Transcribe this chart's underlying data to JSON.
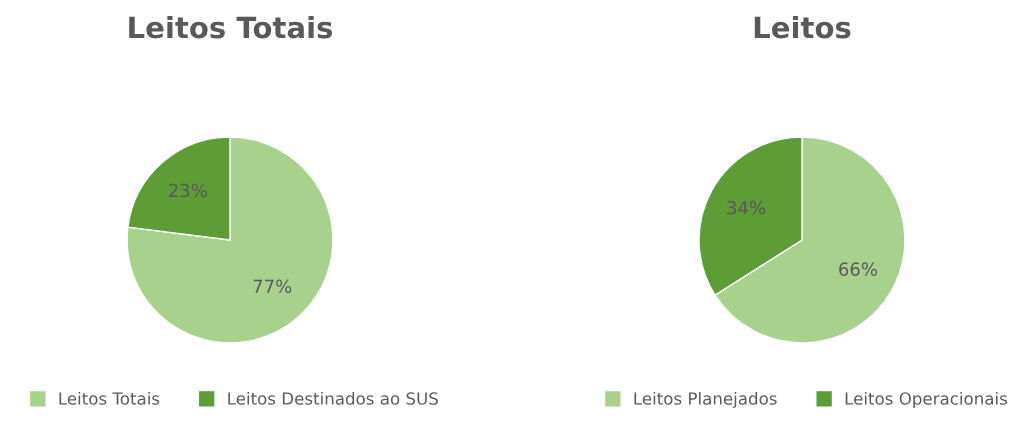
{
  "chart_data": [
    {
      "type": "pie",
      "title": "Leitos Totais",
      "categories": [
        "Leitos Totais",
        "Leitos Destinados ao SUS"
      ],
      "values": [
        77,
        23
      ],
      "colors": [
        "#a9d18e",
        "#5e9c36"
      ],
      "value_labels": [
        "77%",
        "23%"
      ],
      "legend": "bottom"
    },
    {
      "type": "pie",
      "title": "Leitos",
      "categories": [
        "Leitos Planejados",
        "Leitos Operacionais"
      ],
      "values": [
        66,
        34
      ],
      "colors": [
        "#a9d18e",
        "#5e9c36"
      ],
      "value_labels": [
        "66%",
        "34%"
      ],
      "legend": "bottom"
    }
  ]
}
